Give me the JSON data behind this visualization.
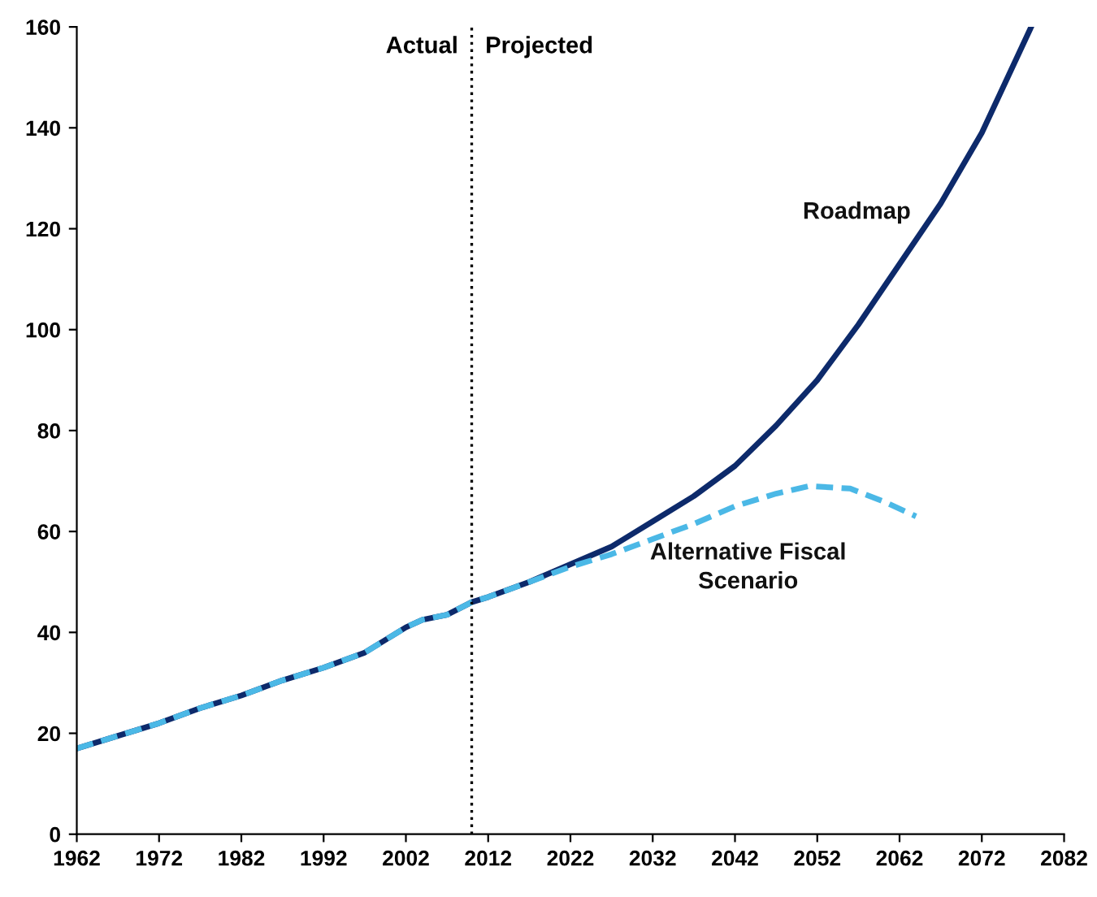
{
  "chart_data": {
    "type": "line",
    "series": [
      {
        "name": "Roadmap",
        "color": "#0d2a6b",
        "line_style": "solid",
        "x": [
          1962,
          1967,
          1972,
          1977,
          1982,
          1987,
          1992,
          1997,
          2002,
          2004,
          2007,
          2010,
          2012,
          2017,
          2022,
          2027,
          2032,
          2037,
          2042,
          2047,
          2052,
          2057,
          2062,
          2067,
          2072,
          2078
        ],
        "values": [
          17,
          19.5,
          22,
          25,
          27.5,
          30.5,
          33,
          36,
          41,
          42.5,
          43.5,
          46,
          47,
          50,
          53.5,
          57,
          62,
          67,
          73,
          81,
          90,
          101,
          113,
          125,
          139,
          160
        ]
      },
      {
        "name": "Alternative Fiscal Scenario",
        "color": "#4bb8e6",
        "line_style": "dashed",
        "x": [
          1962,
          1967,
          1972,
          1977,
          1982,
          1987,
          1992,
          1997,
          2002,
          2004,
          2007,
          2010,
          2012,
          2017,
          2022,
          2027,
          2032,
          2037,
          2042,
          2047,
          2051,
          2056,
          2060,
          2064
        ],
        "values": [
          17,
          19.5,
          22,
          25,
          27.5,
          30.5,
          33,
          36,
          41,
          42.5,
          43.5,
          46,
          47,
          50,
          53,
          55.5,
          58.5,
          61.5,
          65,
          67.5,
          69,
          68.5,
          66,
          63
        ]
      }
    ],
    "xlim": [
      1962,
      2082
    ],
    "xticks": [
      1962,
      1972,
      1982,
      1992,
      2002,
      2012,
      2022,
      2032,
      2042,
      2052,
      2062,
      2072,
      2082
    ],
    "ylim": [
      0,
      160
    ],
    "yticks": [
      0,
      20,
      40,
      60,
      80,
      100,
      120,
      140,
      160
    ],
    "ref_lines": [
      {
        "axis": "x",
        "value": 2010,
        "color": "#000000",
        "line_style": "dotted"
      }
    ],
    "annotations": [
      "Actual",
      "Projected"
    ],
    "grid": false,
    "legend": false
  }
}
